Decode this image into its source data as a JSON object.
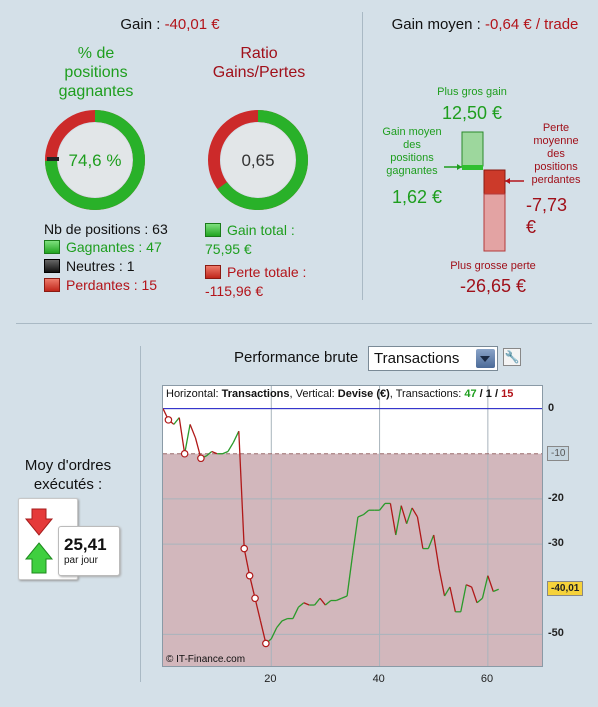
{
  "top_left": {
    "gain_label": "Gain : ",
    "gain_value": "-40,01 €",
    "pct_title": "% de\npositions\ngagnantes",
    "pct_value": "74,6 %",
    "pct_fraction": 0.746,
    "ratio_title": "Ratio\nGains/Pertes",
    "ratio_value": "0,65",
    "ratio_fraction": 0.65,
    "nb_positions": "Nb de positions : 63",
    "gagnantes": "Gagnantes : 47",
    "neutres": "Neutres : 1",
    "perdantes": "Perdantes : 15",
    "gain_total_label": "Gain total :",
    "gain_total_value": "75,95 €",
    "perte_totale_label": "Perte totale :",
    "perte_totale_value": "-115,96 €"
  },
  "top_right": {
    "gain_moyen_label": "Gain moyen : ",
    "gain_moyen_value": "-0,64 € / trade",
    "plus_gros_gain_label": "Plus gros gain",
    "plus_gros_gain_value": "12,50 €",
    "gain_moyen_pos_label": "Gain moyen\ndes\npositions\ngagnantes",
    "gain_moyen_pos_value": "1,62 €",
    "perte_moyenne_label": "Perte\nmoyenne\ndes\npositions\nperdantes",
    "perte_moyenne_value": "-7,73\n€",
    "plus_grosse_perte_label": "Plus grosse perte",
    "plus_grosse_perte_value": "-26,65 €"
  },
  "bottom": {
    "moy_label": "Moy d'ordres\nexécutés :",
    "moy_value": "25,41",
    "moy_unit": "par jour",
    "perf_label": "Performance brute",
    "select_value": "Transactions",
    "chart_header_prefix": "Horizontal: ",
    "chart_header_h": "Transactions",
    "chart_header_mid": ", Vertical: ",
    "chart_header_v": "Devise (€)",
    "chart_header_tx": ", Transactions: ",
    "tx_win": "47",
    "tx_neutral": "1",
    "tx_loss": "15",
    "slash": " / ",
    "copyright": "© IT-Finance.com",
    "tag_level": "-10",
    "tag_last": "-40,01"
  },
  "chart_data": {
    "type": "line",
    "xlabel": "",
    "ylabel": "",
    "xlim": [
      0,
      70
    ],
    "ylim": [
      -57,
      5
    ],
    "x_ticks": [
      20,
      40,
      60
    ],
    "y_ticks": [
      0,
      -20,
      -30,
      -50
    ],
    "reference_line": -10,
    "last_value": -40.01,
    "series": [
      {
        "values": [
          0,
          -2.5,
          -3.5,
          -2,
          -10,
          -3.5,
          -6.5,
          -11,
          -10.5,
          -9.5,
          -10,
          -10,
          -9.5,
          -7.5,
          -5,
          -31,
          -37,
          -42,
          -47,
          -52,
          -51,
          -48.5,
          -47,
          -46.5,
          -46.5,
          -44,
          -43,
          -43.5,
          -43.5,
          -42,
          -43.5,
          -42.5,
          -42.5,
          -42,
          -41.5,
          -32.5,
          -24,
          -23.5,
          -22.5,
          -22.5,
          -22.5,
          -21,
          -21,
          -28,
          -21.5,
          -25.5,
          -22,
          -24,
          -31,
          -31,
          -28,
          -35.5,
          -41.5,
          -39.5,
          -45,
          -45,
          -39,
          -39.5,
          -43,
          -42,
          -37,
          -40.5,
          -40.01
        ],
        "loss_points": [
          1,
          4,
          7,
          15,
          16,
          17,
          19
        ]
      }
    ]
  },
  "colors": {
    "win": "#1e9e1e",
    "loss": "#b3141a",
    "background": "#d4e0e8",
    "chart_negative_fill": "#d2b7bc",
    "zero_line": "#2222cc"
  }
}
